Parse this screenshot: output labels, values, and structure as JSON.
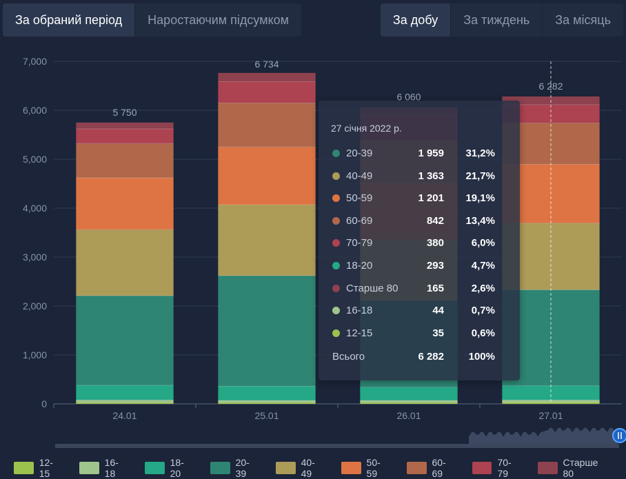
{
  "tabs_left": [
    "За обраний період",
    "Наростаючим підсумком"
  ],
  "tabs_right": [
    "За добу",
    "За тиждень",
    "За місяць"
  ],
  "chart_data": {
    "type": "bar",
    "stacked": true,
    "categories": [
      "24.01",
      "25.01",
      "26.01",
      "27.01"
    ],
    "totals": [
      "5 750",
      "6 734",
      "6 060",
      "6 282"
    ],
    "total_values": [
      5750,
      6734,
      6060,
      6282
    ],
    "ylim": [
      0,
      7000
    ],
    "yticks": [
      0,
      1000,
      2000,
      3000,
      4000,
      5000,
      6000,
      7000
    ],
    "ytick_labels": [
      "0",
      "1,000",
      "2,000",
      "3,000",
      "4,000",
      "5,000",
      "6,000",
      "7,000"
    ],
    "grid": true,
    "series": [
      {
        "name": "12-15",
        "color": "#9cc24e",
        "values": [
          30,
          30,
          30,
          35
        ]
      },
      {
        "name": "16-18",
        "color": "#9fc58c",
        "values": [
          50,
          40,
          40,
          44
        ]
      },
      {
        "name": "18-20",
        "color": "#24a886",
        "values": [
          300,
          290,
          270,
          293
        ]
      },
      {
        "name": "20-39",
        "color": "#2e8573",
        "values": [
          1830,
          2260,
          1770,
          1959
        ]
      },
      {
        "name": "40-49",
        "color": "#ad9b58",
        "values": [
          1350,
          1450,
          1240,
          1363
        ]
      },
      {
        "name": "50-59",
        "color": "#de7444",
        "values": [
          1060,
          1180,
          1170,
          1201
        ]
      },
      {
        "name": "60-69",
        "color": "#b1684a",
        "values": [
          700,
          900,
          860,
          842
        ]
      },
      {
        "name": "70-79",
        "color": "#ad4250",
        "values": [
          300,
          434,
          520,
          380
        ]
      },
      {
        "name": "Старше 80",
        "color": "#8e414f",
        "values": [
          130,
          180,
          160,
          165
        ]
      }
    ],
    "legend_position": "bottom",
    "highlight_index": 3
  },
  "tooltip": {
    "date": "27 січня 2022 р.",
    "rows": [
      {
        "name": "20-39",
        "value": "1 959",
        "pct": "31,2%",
        "color": "#2e8573"
      },
      {
        "name": "40-49",
        "value": "1 363",
        "pct": "21,7%",
        "color": "#ad9b58"
      },
      {
        "name": "50-59",
        "value": "1 201",
        "pct": "19,1%",
        "color": "#de7444"
      },
      {
        "name": "60-69",
        "value": "842",
        "pct": "13,4%",
        "color": "#b1684a"
      },
      {
        "name": "70-79",
        "value": "380",
        "pct": "6,0%",
        "color": "#ad4250"
      },
      {
        "name": "18-20",
        "value": "293",
        "pct": "4,7%",
        "color": "#24a886"
      },
      {
        "name": "Старше 80",
        "value": "165",
        "pct": "2,6%",
        "color": "#8e414f"
      },
      {
        "name": "16-18",
        "value": "44",
        "pct": "0,7%",
        "color": "#9fc58c"
      },
      {
        "name": "12-15",
        "value": "35",
        "pct": "0,6%",
        "color": "#9cc24e"
      }
    ],
    "total_label": "Всього",
    "total_value": "6 282",
    "total_pct": "100%"
  }
}
